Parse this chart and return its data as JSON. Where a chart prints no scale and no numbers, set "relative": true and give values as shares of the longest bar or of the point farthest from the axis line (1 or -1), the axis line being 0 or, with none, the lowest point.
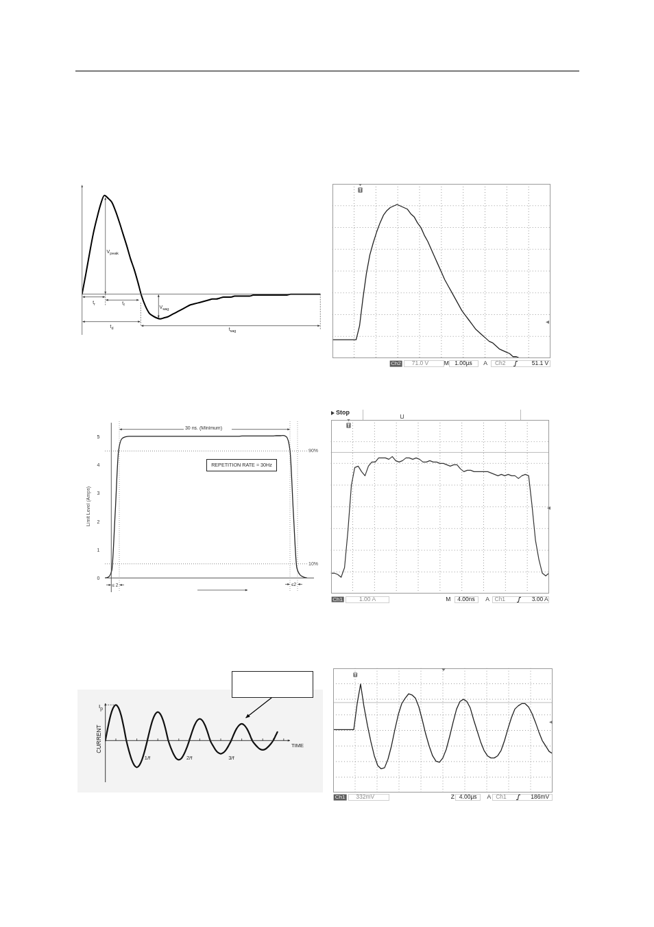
{
  "chart_data": [
    {
      "type": "line",
      "relative": true,
      "tick_labels": false,
      "categories": [
        null,
        null,
        null,
        null,
        null,
        null,
        null,
        null,
        null,
        null,
        null,
        null,
        null,
        null,
        null,
        null,
        null,
        null,
        null,
        null,
        null,
        null,
        null,
        null,
        null,
        null,
        null,
        null,
        null,
        null,
        null,
        null,
        null,
        null,
        null,
        null,
        null,
        null,
        null,
        null,
        null,
        null,
        null,
        null,
        null,
        null,
        null,
        null,
        null,
        null,
        null,
        null,
        null,
        null,
        null,
        null,
        null,
        null,
        null,
        null,
        null,
        null,
        null,
        null,
        null
      ],
      "series": [
        {
          "color": "#000000",
          "values": [
            0,
            0.2,
            0.41,
            0.61,
            0.77,
            0.91,
            1,
            0.97,
            0.93,
            0.84,
            0.73,
            0.61,
            0.49,
            0.36,
            0.25,
            0.12,
            -0.02,
            -0.12,
            -0.19,
            -0.22,
            -0.24,
            -0.25,
            -0.24,
            -0.23,
            -0.21,
            -0.19,
            -0.17,
            -0.15,
            -0.13,
            -0.11,
            -0.1,
            -0.09,
            -0.08,
            -0.07,
            -0.06,
            -0.05,
            -0.05,
            -0.04,
            -0.03,
            -0.03,
            -0.03,
            -0.02,
            -0.02,
            -0.02,
            -0.02,
            -0.02,
            -0.01,
            -0.01,
            -0.01,
            -0.01,
            -0.01,
            -0.01,
            -0.01,
            -0.01,
            -0.01,
            -0.01,
            0,
            0,
            0,
            0,
            0,
            0,
            0,
            0,
            0
          ]
        }
      ],
      "annotations": [
        "V$_{peak}$",
        "V$_{sag}$",
        "t$_{r}$",
        "t$_{f}$",
        "t$_{d}$",
        "t$_{sag}$"
      ]
    },
    {
      "type": "line",
      "relative": true,
      "tick_labels": false,
      "grid": true,
      "categories": [
        null,
        null,
        null,
        null,
        null,
        null,
        null,
        null,
        null,
        null,
        null,
        null,
        null,
        null,
        null,
        null,
        null,
        null,
        null,
        null,
        null,
        null,
        null,
        null,
        null,
        null,
        null,
        null,
        null,
        null,
        null,
        null,
        null,
        null,
        null,
        null,
        null,
        null,
        null,
        null,
        null,
        null,
        null,
        null,
        null,
        null,
        null,
        null,
        null,
        null,
        null,
        null,
        null,
        null,
        null,
        null,
        null,
        null,
        null,
        null,
        null,
        null,
        null,
        null,
        null
      ],
      "series": [
        {
          "color": "#222222",
          "values": [
            0.12,
            0.12,
            0.12,
            0.12,
            0.12,
            0.12,
            0.12,
            0.12,
            0.21,
            0.39,
            0.55,
            0.67,
            0.75,
            0.82,
            0.88,
            0.93,
            0.96,
            0.98,
            0.99,
            1,
            0.99,
            0.98,
            0.97,
            0.94,
            0.92,
            0.88,
            0.85,
            0.8,
            0.76,
            0.71,
            0.66,
            0.61,
            0.56,
            0.51,
            0.47,
            0.43,
            0.39,
            0.35,
            0.31,
            0.28,
            0.25,
            0.22,
            0.19,
            0.17,
            0.15,
            0.13,
            0.11,
            0.1,
            0.08,
            0.06,
            0.05,
            0.04,
            0.03,
            0.01,
            0.01,
            0,
            null,
            null,
            null,
            null,
            null,
            null,
            null,
            null,
            null
          ]
        }
      ],
      "annotations": [
        "Ch2",
        "71.0 V",
        "M",
        "1.00µs",
        "A",
        "Ch2",
        "51.1 V"
      ]
    },
    {
      "type": "line",
      "tick_labels": "y",
      "ylabel": "Limit Level (Amps)",
      "ylim": [
        0,
        5.5
      ],
      "yticks": [
        0,
        1,
        2,
        3,
        4,
        5
      ],
      "categories": [
        null,
        null,
        null,
        null,
        null,
        null,
        null,
        null,
        null,
        null,
        null,
        null,
        null,
        null,
        null,
        null,
        null,
        null,
        null,
        null,
        null,
        null,
        null,
        null,
        null,
        null,
        null,
        null,
        null,
        null,
        null,
        null,
        null,
        null,
        null,
        null,
        null,
        null,
        null,
        null,
        null,
        null,
        null,
        null,
        null,
        null,
        null,
        null,
        null,
        null,
        null,
        null,
        null,
        null,
        null,
        null,
        null,
        null,
        null,
        null
      ],
      "series": [
        {
          "color": "#222222",
          "values": [
            0,
            0.03,
            0.26,
            2.29,
            4.52,
            4.94,
            5,
            5.02,
            5.02,
            5.02,
            5.02,
            5.02,
            5.02,
            5.02,
            5.02,
            5.02,
            5.02,
            5.02,
            5.02,
            5.02,
            5.02,
            5.02,
            5.02,
            5.02,
            5.02,
            5.02,
            5.02,
            5.02,
            5.02,
            5.02,
            5.02,
            5.02,
            5.02,
            5.02,
            5.02,
            5.02,
            5.02,
            5.02,
            5.02,
            5.02,
            5.03,
            5.03,
            5.03,
            5.03,
            5.03,
            5.03,
            5.03,
            5.03,
            5.03,
            5.03,
            5.04,
            5.04,
            5.05,
            5,
            4.52,
            2.29,
            0.36,
            0.1,
            0.03,
            0
          ]
        }
      ],
      "ref_lines": [
        {
          "axis": "y",
          "value": 4.5,
          "line_style": "dotted",
          "color": "#666666"
        },
        {
          "axis": "y",
          "value": 0.5,
          "line_style": "dotted",
          "color": "#666666"
        }
      ],
      "annotations": [
        "30 ns. (Minimum)",
        "REPETITION RATE = 30Hz",
        "≤ 2",
        "≤2",
        "90%",
        "10%"
      ]
    },
    {
      "type": "line",
      "relative": true,
      "tick_labels": false,
      "grid": true,
      "categories": [
        null,
        null,
        null,
        null,
        null,
        null,
        null,
        null,
        null,
        null,
        null,
        null,
        null,
        null,
        null,
        null,
        null,
        null,
        null,
        null,
        null,
        null,
        null,
        null,
        null,
        null,
        null,
        null,
        null,
        null,
        null,
        null,
        null,
        null,
        null,
        null,
        null,
        null,
        null,
        null,
        null,
        null,
        null,
        null,
        null,
        null,
        null,
        null,
        null,
        null,
        null,
        null,
        null,
        null,
        null,
        null,
        null,
        null,
        null,
        null,
        null,
        null,
        null,
        null,
        null
      ],
      "series": [
        {
          "color": "#333333",
          "values": [
            0.15,
            0.15,
            0.14,
            0.12,
            0.19,
            0.46,
            0.79,
            0.92,
            0.93,
            0.89,
            0.86,
            0.93,
            0.96,
            0.96,
            0.99,
            0.99,
            0.99,
            0.98,
            1,
            0.97,
            0.96,
            0.97,
            0.99,
            0.99,
            0.98,
            0.99,
            0.98,
            0.96,
            0.96,
            0.97,
            0.96,
            0.96,
            0.95,
            0.95,
            0.94,
            0.93,
            0.94,
            0.94,
            0.91,
            0.89,
            0.9,
            0.9,
            0.89,
            0.89,
            0.89,
            0.89,
            0.89,
            0.88,
            0.87,
            0.86,
            0.87,
            0.86,
            0.87,
            0.86,
            0.86,
            0.84,
            0.86,
            0.87,
            0.86,
            0.64,
            0.39,
            0.25,
            0.15,
            0.13,
            0.15
          ]
        }
      ],
      "ref_lines": [
        {
          "axis": "y",
          "value": 1.03,
          "color": "#aaaaaa"
        }
      ],
      "annotations": [
        "Stop",
        "Ch1",
        "1.00 A",
        "M",
        "4.00ns",
        "A",
        "Ch1",
        "3.00 A"
      ]
    },
    {
      "type": "line",
      "relative": true,
      "tick_labels": "x",
      "xlabel": "TIME",
      "ylabel": "CURRENT",
      "x": [
        0,
        0.0625,
        0.125,
        0.1875,
        0.25,
        0.3125,
        0.375,
        0.4375,
        0.5,
        0.5625,
        0.625,
        0.6875,
        0.75,
        0.8125,
        0.875,
        0.9375,
        1,
        1.0625,
        1.125,
        1.1875,
        1.25,
        1.3125,
        1.375,
        1.4375,
        1.5,
        1.5625,
        1.625,
        1.6875,
        1.75,
        1.8125,
        1.875,
        1.9375,
        2,
        2.0625,
        2.125,
        2.1875,
        2.25,
        2.3125,
        2.375,
        2.4375,
        2.5,
        2.5625,
        2.625,
        2.6875,
        2.75,
        2.8125,
        2.875,
        2.9375,
        3,
        3.0625,
        3.125,
        3.1875,
        3.25,
        3.3125,
        3.375,
        3.4375,
        3.5,
        3.5625,
        3.625,
        3.6875,
        3.75,
        3.8125,
        3.875,
        3.9375,
        4,
        4.0625,
        4.1
      ],
      "xlim": [
        0,
        4.4
      ],
      "xticks": [
        {
          "value": 0.25,
          "label": null
        },
        {
          "value": 0.5,
          "label": null
        },
        {
          "value": 0.75,
          "label": null
        },
        {
          "value": 1,
          "label": "1/f"
        },
        {
          "value": 1.25,
          "label": null
        },
        {
          "value": 1.5,
          "label": null
        },
        {
          "value": 1.75,
          "label": null
        },
        {
          "value": 2,
          "label": "2/f"
        },
        {
          "value": 2.25,
          "label": null
        },
        {
          "value": 2.5,
          "label": null
        },
        {
          "value": 2.75,
          "label": null
        },
        {
          "value": 3,
          "label": "3/f"
        },
        {
          "value": 3.25,
          "label": null
        },
        {
          "value": 3.5,
          "label": null
        },
        {
          "value": 3.75,
          "label": null
        },
        {
          "value": 4,
          "label": null
        },
        {
          "value": 4.25,
          "label": null
        }
      ],
      "series": [
        {
          "color": "#111111",
          "values": [
            0,
            0.38,
            0.71,
            0.92,
            1,
            0.92,
            0.71,
            0.38,
            0,
            -0.29,
            -0.53,
            -0.69,
            -0.75,
            -0.69,
            -0.53,
            -0.29,
            0,
            0.31,
            0.57,
            0.74,
            0.8,
            0.74,
            0.57,
            0.31,
            0,
            -0.21,
            -0.38,
            -0.5,
            -0.54,
            -0.5,
            -0.38,
            -0.21,
            0,
            0.23,
            0.43,
            0.56,
            0.61,
            0.56,
            0.43,
            0.23,
            0,
            -0.14,
            -0.26,
            -0.34,
            -0.37,
            -0.34,
            -0.26,
            -0.14,
            0,
            0.18,
            0.33,
            0.43,
            0.47,
            0.43,
            0.33,
            0.18,
            0,
            -0.1,
            -0.18,
            -0.24,
            -0.26,
            -0.24,
            -0.18,
            -0.1,
            0,
            0.15,
            0.24
          ]
        }
      ],
      "annotations": [
        {
          "text": "I$_{p}$",
          "x": 0.25,
          "y": 1
        }
      ]
    },
    {
      "type": "line",
      "relative": true,
      "tick_labels": false,
      "grid": true,
      "categories": [
        null,
        null,
        null,
        null,
        null,
        null,
        null,
        null,
        null,
        null,
        null,
        null,
        null,
        null,
        null,
        null,
        null,
        null,
        null,
        null,
        null,
        null,
        null,
        null,
        null,
        null,
        null,
        null,
        null,
        null,
        null,
        null,
        null,
        null,
        null,
        null,
        null,
        null,
        null,
        null,
        null,
        null,
        null,
        null,
        null,
        null,
        null,
        null,
        null,
        null,
        null,
        null,
        null,
        null,
        null,
        null,
        null,
        null,
        null,
        null,
        null,
        null,
        null,
        null,
        null
      ],
      "series": [
        {
          "color": "#222222",
          "values": [
            0.58,
            0.58,
            0.58,
            0.58,
            0.58,
            0.58,
            0.58,
            0.82,
            1,
            0.79,
            0.62,
            0.47,
            0.34,
            0.25,
            0.22,
            0.23,
            0.31,
            0.43,
            0.58,
            0.72,
            0.82,
            0.87,
            0.91,
            0.9,
            0.87,
            0.79,
            0.67,
            0.54,
            0.43,
            0.34,
            0.29,
            0.28,
            0.32,
            0.4,
            0.52,
            0.65,
            0.77,
            0.84,
            0.86,
            0.84,
            0.78,
            0.67,
            0.57,
            0.47,
            0.39,
            0.34,
            0.32,
            0.32,
            0.34,
            0.39,
            0.48,
            0.59,
            0.69,
            0.77,
            0.8,
            0.82,
            0.82,
            0.79,
            0.73,
            0.65,
            0.56,
            0.48,
            0.43,
            0.38,
            0.36
          ]
        }
      ],
      "ref_lines": [
        {
          "axis": "y",
          "value": 0.83,
          "color": "#aaaaaa"
        }
      ],
      "annotations": [
        "Ch1",
        "332mV",
        "Z",
        "4.00µs",
        "A",
        "Ch1",
        "186mV"
      ]
    }
  ]
}
